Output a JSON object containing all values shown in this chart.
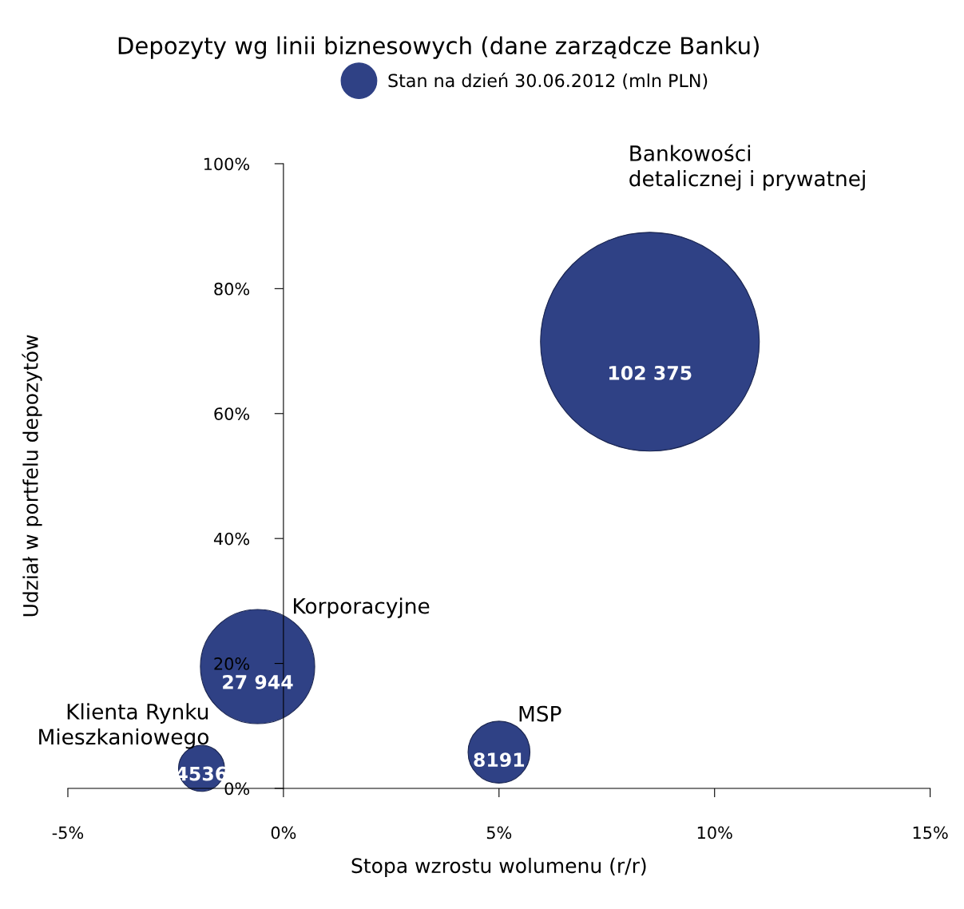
{
  "chart_data": {
    "type": "bubble",
    "title": "Depozyty wg linii biznesowych (dane zarządcze Banku)",
    "xlabel": "Stopa wzrostu wolumenu (r/r)",
    "ylabel": "Udział w portfelu depozytów",
    "series": [
      {
        "name": "Stan na dzień 30.06.2012 (mln PLN)",
        "color": "#2f4185",
        "x": [
          8.5,
          -0.6,
          5.0,
          -1.9
        ],
        "values": [
          71.5,
          19.5,
          5.8,
          3.2
        ],
        "sizes": [
          102375,
          27944,
          8191,
          4536
        ],
        "value_labels": [
          "102 375",
          "27 944",
          "8191",
          "4536"
        ]
      }
    ],
    "annotations": [
      "Bankowości\ndetalicznej i prywatnej",
      {
        "text": "Korporacyjne",
        "x": -0.6,
        "y": 19.5
      },
      {
        "text": "MSP",
        "x": 5.0,
        "y": 5.8
      },
      {
        "text": "Klienta Rynku\nMieszkaniowego",
        "x": -1.9,
        "y": 3.2
      }
    ],
    "xlim": [
      -5,
      15
    ],
    "ylim": [
      0,
      100
    ],
    "xticks": [
      {
        "value": -5,
        "label": "-5%"
      },
      {
        "value": 0,
        "label": "0%"
      },
      {
        "value": 5,
        "label": "5%"
      },
      {
        "value": 10,
        "label": "10%"
      },
      {
        "value": 15,
        "label": "15%"
      }
    ],
    "yticks": [
      {
        "value": 0,
        "label": "0%"
      },
      {
        "value": 20,
        "label": "20%"
      },
      {
        "value": 40,
        "label": "40%"
      },
      {
        "value": 60,
        "label": "60%"
      },
      {
        "value": 80,
        "label": "80%"
      },
      {
        "value": 100,
        "label": "100%"
      }
    ],
    "legend": "top"
  }
}
